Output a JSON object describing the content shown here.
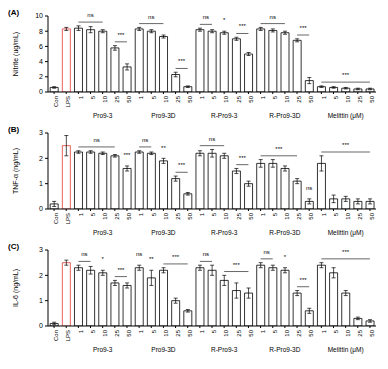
{
  "chart_data": [
    {
      "type": "bar",
      "title": "(A)",
      "y_label": "Nitrite (ug/mL)",
      "categories": [
        "Con",
        "LPS",
        "1",
        "5",
        "10",
        "25",
        "50",
        "1",
        "5",
        "10",
        "25",
        "50",
        "1",
        "5",
        "10",
        "25",
        "50",
        "1",
        "5",
        "10",
        "25",
        "50",
        "1",
        "5",
        "10",
        "25",
        "50"
      ],
      "values": [
        0.6,
        8.3,
        8.4,
        8.2,
        8.0,
        5.8,
        3.3,
        8.3,
        8.0,
        7.3,
        2.3,
        0.7,
        8.2,
        8.0,
        7.8,
        7.0,
        5.0,
        8.3,
        8.1,
        7.8,
        6.8,
        1.5,
        0.7,
        0.6,
        0.5,
        0.4,
        0.4
      ],
      "errors": [
        0.1,
        0.2,
        0.3,
        0.4,
        0.2,
        0.3,
        0.4,
        0.2,
        0.2,
        0.2,
        0.3,
        0.1,
        0.2,
        0.2,
        0.2,
        0.2,
        0.2,
        0.2,
        0.2,
        0.2,
        0.2,
        0.4,
        0.1,
        0.1,
        0.1,
        0.1,
        0.1
      ],
      "colors": [
        "#000000",
        "#e53935",
        "#000000",
        "#000000",
        "#000000",
        "#000000",
        "#000000",
        "#000000",
        "#000000",
        "#000000",
        "#000000",
        "#000000",
        "#000000",
        "#000000",
        "#000000",
        "#000000",
        "#000000",
        "#000000",
        "#000000",
        "#000000",
        "#000000",
        "#000000",
        "#000000",
        "#000000",
        "#000000",
        "#000000",
        "#000000"
      ],
      "ylim": [
        0,
        10
      ],
      "yticks": [
        0,
        2,
        4,
        6,
        8,
        10
      ],
      "groups": [
        {
          "text": "Pro9-3",
          "from": 2,
          "to": 6
        },
        {
          "text": "Pro9-3D",
          "from": 7,
          "to": 11
        },
        {
          "text": "R-Pro9-3",
          "from": 12,
          "to": 16
        },
        {
          "text": "R-Pro9-3D",
          "from": 17,
          "to": 21
        },
        {
          "text": "Melittin (μM)",
          "from": 22,
          "to": 26
        }
      ],
      "annotations": [
        {
          "text": "ns",
          "from": 2,
          "to": 4
        },
        {
          "text": "***",
          "from": 5,
          "to": 6
        },
        {
          "text": "ns",
          "from": 7,
          "to": 9
        },
        {
          "text": "***",
          "from": 10,
          "to": 11
        },
        {
          "text": "ns",
          "from": 12,
          "to": 13
        },
        {
          "text": "*",
          "from": 14,
          "to": 14
        },
        {
          "text": "***",
          "from": 15,
          "to": 16
        },
        {
          "text": "ns",
          "from": 17,
          "to": 19
        },
        {
          "text": "***",
          "from": 20,
          "to": 21
        },
        {
          "text": "***",
          "from": 22,
          "to": 26
        }
      ]
    },
    {
      "type": "bar",
      "title": "(B)",
      "y_label": "TNF-α (ng/mL)",
      "categories": [
        "Con",
        "LPS",
        "1",
        "5",
        "10",
        "25",
        "50",
        "1",
        "5",
        "10",
        "25",
        "50",
        "1",
        "5",
        "10",
        "25",
        "50",
        "1",
        "5",
        "10",
        "25",
        "50",
        "1",
        "5",
        "10",
        "25",
        "50"
      ],
      "values": [
        0.2,
        2.5,
        2.25,
        2.25,
        2.2,
        2.1,
        1.6,
        2.25,
        2.2,
        1.9,
        1.2,
        0.6,
        2.2,
        2.2,
        2.1,
        1.5,
        1.0,
        1.8,
        1.8,
        1.6,
        1.1,
        0.3,
        1.8,
        0.4,
        0.4,
        0.3,
        0.3
      ],
      "errors": [
        0.1,
        0.4,
        0.05,
        0.05,
        0.05,
        0.05,
        0.1,
        0.05,
        0.05,
        0.1,
        0.1,
        0.05,
        0.1,
        0.15,
        0.1,
        0.1,
        0.1,
        0.15,
        0.15,
        0.1,
        0.1,
        0.1,
        0.3,
        0.15,
        0.1,
        0.1,
        0.1
      ],
      "colors": [
        "#000000",
        "#e53935",
        "#000000",
        "#000000",
        "#000000",
        "#000000",
        "#000000",
        "#000000",
        "#000000",
        "#000000",
        "#000000",
        "#000000",
        "#000000",
        "#000000",
        "#000000",
        "#000000",
        "#000000",
        "#000000",
        "#000000",
        "#000000",
        "#000000",
        "#000000",
        "#000000",
        "#000000",
        "#000000",
        "#000000",
        "#000000"
      ],
      "ylim": [
        0,
        3
      ],
      "yticks": [
        0,
        1,
        2,
        3
      ],
      "groups": [
        {
          "text": "Pro9-3",
          "from": 2,
          "to": 6
        },
        {
          "text": "Pro9-3D",
          "from": 7,
          "to": 11
        },
        {
          "text": "R-Pro9-3",
          "from": 12,
          "to": 16
        },
        {
          "text": "R-Pro9-3D",
          "from": 17,
          "to": 21
        },
        {
          "text": "Melittin (μM)",
          "from": 22,
          "to": 26
        }
      ],
      "annotations": [
        {
          "text": "ns",
          "from": 2,
          "to": 5
        },
        {
          "text": "***",
          "from": 6,
          "to": 6
        },
        {
          "text": "ns",
          "from": 7,
          "to": 8
        },
        {
          "text": "**",
          "from": 9,
          "to": 9
        },
        {
          "text": "***",
          "from": 10,
          "to": 11
        },
        {
          "text": "ns",
          "from": 12,
          "to": 14
        },
        {
          "text": "***",
          "from": 15,
          "to": 16
        },
        {
          "text": "***",
          "from": 17,
          "to": 20
        },
        {
          "text": "ns",
          "from": 21,
          "to": 21
        },
        {
          "text": "***",
          "from": 22,
          "to": 26
        }
      ]
    },
    {
      "type": "bar",
      "title": "(C)",
      "y_label": "IL-6 (ng/mL)",
      "categories": [
        "Con",
        "LPS",
        "1",
        "5",
        "10",
        "25",
        "50",
        "1",
        "5",
        "10",
        "25",
        "50",
        "1",
        "5",
        "10",
        "25",
        "50",
        "1",
        "5",
        "10",
        "25",
        "50",
        "1",
        "5",
        "10",
        "25",
        "50"
      ],
      "values": [
        0.1,
        2.5,
        2.3,
        2.2,
        2.1,
        1.7,
        1.6,
        2.3,
        1.9,
        2.2,
        1.0,
        0.6,
        2.3,
        2.2,
        1.8,
        1.4,
        1.3,
        2.4,
        2.3,
        2.2,
        1.3,
        0.6,
        2.4,
        2.1,
        1.3,
        0.3,
        0.2
      ],
      "errors": [
        0.05,
        0.1,
        0.1,
        0.15,
        0.1,
        0.1,
        0.1,
        0.1,
        0.3,
        0.1,
        0.1,
        0.05,
        0.1,
        0.2,
        0.2,
        0.3,
        0.2,
        0.1,
        0.1,
        0.1,
        0.1,
        0.1,
        0.1,
        0.2,
        0.1,
        0.05,
        0.05
      ],
      "colors": [
        "#000000",
        "#e53935",
        "#000000",
        "#000000",
        "#000000",
        "#000000",
        "#000000",
        "#000000",
        "#000000",
        "#000000",
        "#000000",
        "#000000",
        "#000000",
        "#000000",
        "#000000",
        "#000000",
        "#000000",
        "#000000",
        "#000000",
        "#000000",
        "#000000",
        "#000000",
        "#000000",
        "#000000",
        "#000000",
        "#000000",
        "#000000"
      ],
      "ylim": [
        0,
        3
      ],
      "yticks": [
        0,
        1,
        2,
        3
      ],
      "groups": [
        {
          "text": "Pro9-3",
          "from": 2,
          "to": 6
        },
        {
          "text": "Pro9-3D",
          "from": 7,
          "to": 11
        },
        {
          "text": "R-Pro9-3",
          "from": 12,
          "to": 16
        },
        {
          "text": "R-Pro9-3D",
          "from": 17,
          "to": 21
        },
        {
          "text": "Melittin (μM)",
          "from": 22,
          "to": 26
        }
      ],
      "annotations": [
        {
          "text": "ns",
          "from": 2,
          "to": 3
        },
        {
          "text": "*",
          "from": 4,
          "to": 4
        },
        {
          "text": "***",
          "from": 5,
          "to": 6
        },
        {
          "text": "ns",
          "from": 7,
          "to": 7
        },
        {
          "text": "**",
          "from": 8,
          "to": 8
        },
        {
          "text": "***",
          "from": 9,
          "to": 11
        },
        {
          "text": "ns",
          "from": 12,
          "to": 13
        },
        {
          "text": "***",
          "from": 14,
          "to": 16
        },
        {
          "text": "ns",
          "from": 17,
          "to": 18
        },
        {
          "text": "*",
          "from": 19,
          "to": 19
        },
        {
          "text": "***",
          "from": 20,
          "to": 21
        },
        {
          "text": "***",
          "from": 22,
          "to": 26
        }
      ]
    }
  ]
}
